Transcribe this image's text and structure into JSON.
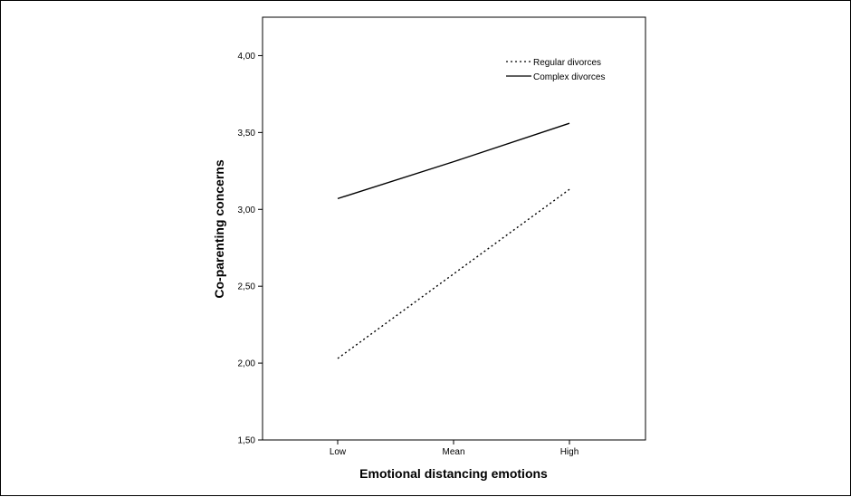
{
  "chart_data": {
    "type": "line",
    "title": "",
    "xlabel": "Emotional distancing emotions",
    "ylabel": "Co-parenting concerns",
    "categories": [
      "Low",
      "Mean",
      "High"
    ],
    "ylim": [
      1.5,
      4.25
    ],
    "yticks": [
      1.5,
      2.0,
      2.5,
      3.0,
      3.5,
      4.0
    ],
    "ytick_labels": [
      "1,50",
      "2,00",
      "2,50",
      "3,00",
      "3,50",
      "4,00"
    ],
    "grid": false,
    "legend_position": "top-right",
    "series": [
      {
        "name": "Regular divorces",
        "values": [
          2.03,
          2.58,
          3.13
        ],
        "style": "dotted",
        "color": "#000000"
      },
      {
        "name": "Complex divorces",
        "values": [
          3.07,
          3.31,
          3.56
        ],
        "style": "solid",
        "color": "#000000"
      }
    ]
  }
}
